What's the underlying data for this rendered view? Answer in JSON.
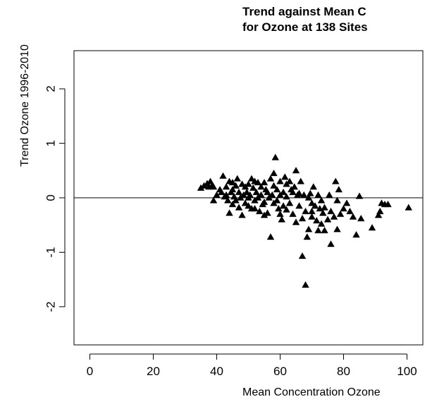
{
  "chart_data": {
    "type": "scatter",
    "title_lines": [
      "Trend against Mean C",
      "for Ozone at 138 Sites"
    ],
    "xlabel": "Mean Concentration Ozone",
    "ylabel": "Trend Ozone 1996-2010",
    "xlim": [
      -5,
      105
    ],
    "ylim": [
      -2.7,
      2.7
    ],
    "xticks": [
      "0",
      "20",
      "40",
      "60",
      "80",
      "100"
    ],
    "xtick_values": [
      0,
      20,
      40,
      60,
      80,
      100
    ],
    "yticks": [
      "-2",
      "-1",
      "0",
      "1",
      "2"
    ],
    "ytick_values": [
      -2,
      -1,
      0,
      1,
      2
    ],
    "reference_line_y": 0,
    "marker": "filled-triangle",
    "marker_color": "#000000",
    "points": [
      [
        35,
        0.18
      ],
      [
        36,
        0.22
      ],
      [
        37,
        0.26
      ],
      [
        37.5,
        0.2
      ],
      [
        38,
        0.3
      ],
      [
        38.5,
        0.22
      ],
      [
        39,
        -0.05
      ],
      [
        40,
        0.05
      ],
      [
        41,
        0.15
      ],
      [
        41.5,
        0.1
      ],
      [
        42,
        0.4
      ],
      [
        42.5,
        0.02
      ],
      [
        43,
        0.2
      ],
      [
        43,
        0.05
      ],
      [
        43.5,
        -0.05
      ],
      [
        44,
        0.3
      ],
      [
        44,
        -0.28
      ],
      [
        44.5,
        0.1
      ],
      [
        45,
        0.15
      ],
      [
        45,
        -0.12
      ],
      [
        45.5,
        0.02
      ],
      [
        46,
        0.22
      ],
      [
        46,
        -0.05
      ],
      [
        46.5,
        0.35
      ],
      [
        47,
        0.1
      ],
      [
        47,
        -0.18
      ],
      [
        47.5,
        0.0
      ],
      [
        48,
        0.25
      ],
      [
        48,
        -0.32
      ],
      [
        48.5,
        0.05
      ],
      [
        49,
        0.2
      ],
      [
        49,
        -0.1
      ],
      [
        49.5,
        0.1
      ],
      [
        50,
        0.25
      ],
      [
        50,
        -0.15
      ],
      [
        50.5,
        0.05
      ],
      [
        51,
        0.35
      ],
      [
        51,
        -0.2
      ],
      [
        51.5,
        0.18
      ],
      [
        52,
        0.3
      ],
      [
        52,
        -0.05
      ],
      [
        52,
        -0.2
      ],
      [
        52.5,
        0.1
      ],
      [
        53,
        0.28
      ],
      [
        53,
        0.0
      ],
      [
        53.5,
        -0.25
      ],
      [
        54,
        0.2
      ],
      [
        54,
        0.05
      ],
      [
        54.5,
        -0.12
      ],
      [
        55,
        0.28
      ],
      [
        55,
        -0.08
      ],
      [
        55.5,
        0.15
      ],
      [
        56,
        0.1
      ],
      [
        56,
        -0.28
      ],
      [
        56.5,
        0.0
      ],
      [
        57,
        0.35
      ],
      [
        57,
        -0.72
      ],
      [
        57.5,
        0.05
      ],
      [
        58,
        0.22
      ],
      [
        58,
        -0.1
      ],
      [
        58.5,
        0.74
      ],
      [
        59,
        0.15
      ],
      [
        59,
        -0.05
      ],
      [
        59.5,
        -0.2
      ],
      [
        60,
        0.3
      ],
      [
        60,
        0.05
      ],
      [
        60.5,
        -0.4
      ],
      [
        61,
        0.1
      ],
      [
        61,
        -0.15
      ],
      [
        61.5,
        0.38
      ],
      [
        62,
        0.02
      ],
      [
        62,
        -0.22
      ],
      [
        63,
        0.3
      ],
      [
        63,
        -0.1
      ],
      [
        63.5,
        0.15
      ],
      [
        64,
        -0.3
      ],
      [
        64.5,
        0.2
      ],
      [
        65,
        0.5
      ],
      [
        65,
        -0.45
      ],
      [
        65.5,
        0.05
      ],
      [
        66,
        -0.15
      ],
      [
        66.5,
        0.3
      ],
      [
        67,
        -1.07
      ],
      [
        67,
        -0.38
      ],
      [
        67.5,
        0.05
      ],
      [
        68,
        -0.25
      ],
      [
        68,
        -1.6
      ],
      [
        68.5,
        -0.72
      ],
      [
        69,
        0.0
      ],
      [
        69,
        -0.58
      ],
      [
        69.5,
        0.08
      ],
      [
        70,
        -0.1
      ],
      [
        70,
        -0.35
      ],
      [
        70.5,
        0.2
      ],
      [
        71,
        -0.15
      ],
      [
        71.5,
        -0.42
      ],
      [
        72,
        0.05
      ],
      [
        72,
        -0.6
      ],
      [
        72.5,
        -0.2
      ],
      [
        73,
        -0.05
      ],
      [
        73,
        -0.48
      ],
      [
        73.5,
        -0.28
      ],
      [
        74,
        -0.18
      ],
      [
        75,
        -0.4
      ],
      [
        75.5,
        0.05
      ],
      [
        76,
        -0.85
      ],
      [
        76,
        -0.25
      ],
      [
        77,
        -0.35
      ],
      [
        77.5,
        0.3
      ],
      [
        78,
        -0.58
      ],
      [
        78,
        -0.05
      ],
      [
        78.5,
        0.15
      ],
      [
        79,
        -0.3
      ],
      [
        80,
        -0.2
      ],
      [
        81,
        -0.1
      ],
      [
        82,
        -0.25
      ],
      [
        83,
        -0.35
      ],
      [
        84,
        -0.68
      ],
      [
        85,
        0.03
      ],
      [
        85.5,
        -0.38
      ],
      [
        89,
        -0.55
      ],
      [
        91,
        -0.32
      ],
      [
        91.5,
        -0.25
      ],
      [
        92,
        -0.1
      ],
      [
        93,
        -0.12
      ],
      [
        94,
        -0.12
      ],
      [
        100.5,
        -0.18
      ],
      [
        39,
        0.2
      ],
      [
        45,
        0.28
      ],
      [
        50,
        0.0
      ],
      [
        55,
        -0.32
      ],
      [
        60,
        -0.3
      ],
      [
        64,
        0.1
      ],
      [
        70,
        -0.25
      ],
      [
        74,
        -0.6
      ],
      [
        58,
        0.45
      ],
      [
        62,
        0.25
      ],
      [
        66,
        0.08
      ]
    ]
  }
}
